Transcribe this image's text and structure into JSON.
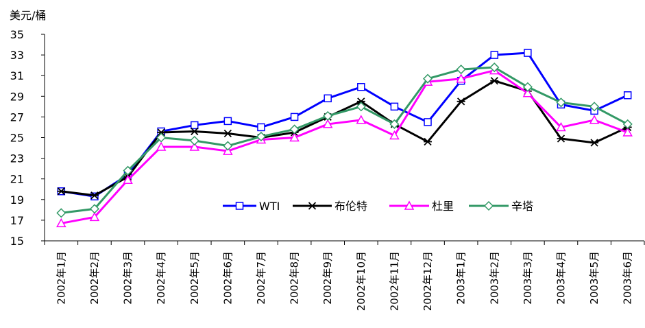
{
  "chart_data": {
    "type": "line",
    "ylabel": "美元/桶",
    "ylim": [
      15,
      35
    ],
    "yticks": [
      15,
      17,
      19,
      21,
      23,
      25,
      27,
      29,
      31,
      33,
      35
    ],
    "grid": false,
    "legend_position": "center-left",
    "categories": [
      "2002年1月",
      "2002年2月",
      "2002年3月",
      "2002年4月",
      "2002年5月",
      "2002年6月",
      "2002年7月",
      "2002年8月",
      "2002年9月",
      "2002年10月",
      "2002年11月",
      "2002年12月",
      "2003年1月",
      "2003年2月",
      "2003年3月",
      "2003年4月",
      "2003年5月",
      "2003年6月"
    ],
    "series": [
      {
        "name": "WTI",
        "color": "#0000FF",
        "marker": "square",
        "values": [
          19.8,
          19.3,
          21.4,
          25.6,
          26.2,
          26.6,
          26.0,
          27.0,
          28.8,
          29.9,
          28.0,
          26.5,
          30.5,
          33.0,
          33.2,
          28.2,
          27.6,
          29.1
        ]
      },
      {
        "name": "布伦特",
        "color": "#000000",
        "marker": "star",
        "values": [
          19.8,
          19.4,
          21.2,
          25.5,
          25.6,
          25.4,
          25.0,
          25.5,
          27.0,
          28.5,
          26.3,
          24.6,
          28.5,
          30.5,
          29.5,
          24.9,
          24.5,
          26.0
        ]
      },
      {
        "name": "杜里",
        "color": "#FF00FF",
        "marker": "triangle",
        "values": [
          16.7,
          17.3,
          20.9,
          24.1,
          24.1,
          23.7,
          24.8,
          25.0,
          26.3,
          26.7,
          25.2,
          30.4,
          30.7,
          31.5,
          29.3,
          26.0,
          26.7,
          25.5
        ]
      },
      {
        "name": "辛塔",
        "color": "#339966",
        "marker": "diamond",
        "values": [
          17.7,
          18.1,
          21.8,
          25.0,
          24.7,
          24.2,
          25.1,
          25.8,
          27.1,
          28.0,
          26.3,
          30.7,
          31.6,
          31.8,
          29.9,
          28.4,
          28.0,
          26.3
        ]
      }
    ]
  }
}
